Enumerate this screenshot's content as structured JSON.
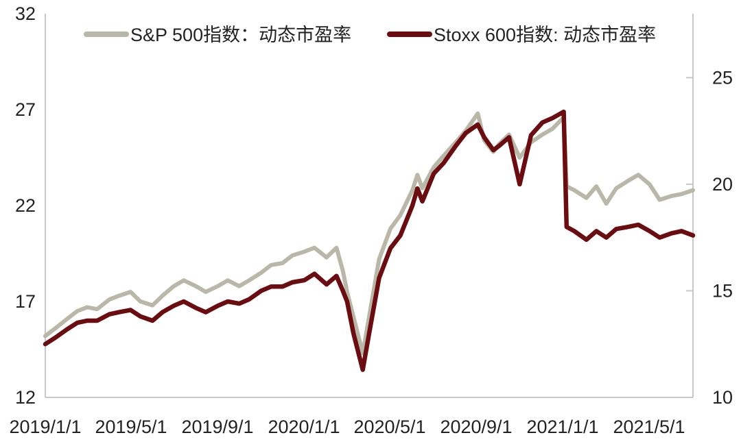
{
  "chart_data": {
    "type": "line",
    "title": "",
    "xlabel": "",
    "ylabel": "",
    "x_ticks": [
      "2019/1/1",
      "2019/5/1",
      "2019/9/1",
      "2020/1/1",
      "2020/5/1",
      "2020/9/1",
      "2021/1/1",
      "2021/5/1"
    ],
    "left_axis": {
      "ylim": [
        12,
        32
      ],
      "ticks": [
        "12",
        "17",
        "22",
        "27",
        "32"
      ]
    },
    "right_axis": {
      "ylim": [
        10,
        28
      ],
      "ticks": [
        "10",
        "15",
        "20",
        "25"
      ]
    },
    "grid": false,
    "legend": "top",
    "series": [
      {
        "name": "S&P 500指数：动态市盈率",
        "axis": "left",
        "color": "#b9b8a8",
        "points": [
          [
            "2019-01-01",
            15.2
          ],
          [
            "2019-01-15",
            15.6
          ],
          [
            "2019-02-01",
            16.1
          ],
          [
            "2019-02-15",
            16.5
          ],
          [
            "2019-03-01",
            16.7
          ],
          [
            "2019-03-15",
            16.6
          ],
          [
            "2019-04-01",
            17.1
          ],
          [
            "2019-04-15",
            17.3
          ],
          [
            "2019-05-01",
            17.5
          ],
          [
            "2019-05-15",
            17.0
          ],
          [
            "2019-06-01",
            16.8
          ],
          [
            "2019-06-15",
            17.3
          ],
          [
            "2019-07-01",
            17.8
          ],
          [
            "2019-07-15",
            18.1
          ],
          [
            "2019-08-01",
            17.8
          ],
          [
            "2019-08-15",
            17.5
          ],
          [
            "2019-09-01",
            17.8
          ],
          [
            "2019-09-15",
            18.1
          ],
          [
            "2019-10-01",
            17.8
          ],
          [
            "2019-10-15",
            18.1
          ],
          [
            "2019-11-01",
            18.5
          ],
          [
            "2019-11-15",
            18.9
          ],
          [
            "2019-12-01",
            19.0
          ],
          [
            "2019-12-15",
            19.4
          ],
          [
            "2020-01-01",
            19.6
          ],
          [
            "2020-01-15",
            19.8
          ],
          [
            "2020-02-01",
            19.3
          ],
          [
            "2020-02-15",
            19.8
          ],
          [
            "2020-02-24",
            18.6
          ],
          [
            "2020-03-01",
            17.5
          ],
          [
            "2020-03-10",
            16.2
          ],
          [
            "2020-03-23",
            14.3
          ],
          [
            "2020-04-01",
            16.2
          ],
          [
            "2020-04-15",
            19.2
          ],
          [
            "2020-05-01",
            20.8
          ],
          [
            "2020-05-15",
            21.5
          ],
          [
            "2020-06-01",
            22.8
          ],
          [
            "2020-06-08",
            23.6
          ],
          [
            "2020-06-15",
            22.9
          ],
          [
            "2020-07-01",
            24.0
          ],
          [
            "2020-07-15",
            24.6
          ],
          [
            "2020-08-01",
            25.3
          ],
          [
            "2020-08-15",
            25.9
          ],
          [
            "2020-09-01",
            26.8
          ],
          [
            "2020-09-10",
            25.4
          ],
          [
            "2020-09-23",
            24.8
          ],
          [
            "2020-10-01",
            25.2
          ],
          [
            "2020-10-15",
            25.7
          ],
          [
            "2020-10-30",
            24.5
          ],
          [
            "2020-11-15",
            25.3
          ],
          [
            "2020-12-01",
            25.7
          ],
          [
            "2020-12-15",
            26.0
          ],
          [
            "2020-12-31",
            26.6
          ],
          [
            "2021-01-04",
            23.0
          ],
          [
            "2021-01-15",
            22.8
          ],
          [
            "2021-02-01",
            22.4
          ],
          [
            "2021-02-15",
            23.0
          ],
          [
            "2021-03-01",
            22.1
          ],
          [
            "2021-03-15",
            22.9
          ],
          [
            "2021-04-01",
            23.3
          ],
          [
            "2021-04-15",
            23.6
          ],
          [
            "2021-05-01",
            23.1
          ],
          [
            "2021-05-15",
            22.3
          ],
          [
            "2021-06-01",
            22.5
          ],
          [
            "2021-06-15",
            22.6
          ],
          [
            "2021-07-01",
            22.8
          ]
        ]
      },
      {
        "name": "Stoxx 600指数: 动态市盈率",
        "axis": "right",
        "color": "#6b0d10",
        "points": [
          [
            "2019-01-01",
            12.5
          ],
          [
            "2019-01-15",
            12.8
          ],
          [
            "2019-02-01",
            13.2
          ],
          [
            "2019-02-15",
            13.5
          ],
          [
            "2019-03-01",
            13.6
          ],
          [
            "2019-03-15",
            13.6
          ],
          [
            "2019-04-01",
            13.9
          ],
          [
            "2019-04-15",
            14.0
          ],
          [
            "2019-05-01",
            14.1
          ],
          [
            "2019-05-15",
            13.8
          ],
          [
            "2019-06-01",
            13.6
          ],
          [
            "2019-06-15",
            14.0
          ],
          [
            "2019-07-01",
            14.3
          ],
          [
            "2019-07-15",
            14.5
          ],
          [
            "2019-08-01",
            14.2
          ],
          [
            "2019-08-15",
            14.0
          ],
          [
            "2019-09-01",
            14.3
          ],
          [
            "2019-09-15",
            14.5
          ],
          [
            "2019-10-01",
            14.4
          ],
          [
            "2019-10-15",
            14.6
          ],
          [
            "2019-11-01",
            15.0
          ],
          [
            "2019-11-15",
            15.2
          ],
          [
            "2019-12-01",
            15.2
          ],
          [
            "2019-12-15",
            15.4
          ],
          [
            "2020-01-01",
            15.5
          ],
          [
            "2020-01-15",
            15.8
          ],
          [
            "2020-02-01",
            15.3
          ],
          [
            "2020-02-15",
            15.7
          ],
          [
            "2020-02-24",
            15.0
          ],
          [
            "2020-03-01",
            14.5
          ],
          [
            "2020-03-10",
            13.0
          ],
          [
            "2020-03-23",
            11.3
          ],
          [
            "2020-04-01",
            13.0
          ],
          [
            "2020-04-15",
            15.6
          ],
          [
            "2020-05-01",
            17.0
          ],
          [
            "2020-05-15",
            17.6
          ],
          [
            "2020-06-01",
            19.0
          ],
          [
            "2020-06-08",
            19.8
          ],
          [
            "2020-06-15",
            19.2
          ],
          [
            "2020-07-01",
            20.5
          ],
          [
            "2020-07-15",
            21.0
          ],
          [
            "2020-08-01",
            21.8
          ],
          [
            "2020-08-15",
            22.4
          ],
          [
            "2020-09-01",
            22.8
          ],
          [
            "2020-09-10",
            22.2
          ],
          [
            "2020-09-23",
            21.6
          ],
          [
            "2020-10-01",
            21.8
          ],
          [
            "2020-10-15",
            22.2
          ],
          [
            "2020-10-30",
            20.0
          ],
          [
            "2020-11-15",
            22.3
          ],
          [
            "2020-12-01",
            22.9
          ],
          [
            "2020-12-15",
            23.1
          ],
          [
            "2020-12-31",
            23.4
          ],
          [
            "2021-01-04",
            18.0
          ],
          [
            "2021-01-15",
            17.8
          ],
          [
            "2021-02-01",
            17.4
          ],
          [
            "2021-02-15",
            17.8
          ],
          [
            "2021-03-01",
            17.5
          ],
          [
            "2021-03-15",
            17.9
          ],
          [
            "2021-04-01",
            18.0
          ],
          [
            "2021-04-15",
            18.1
          ],
          [
            "2021-05-01",
            17.8
          ],
          [
            "2021-05-15",
            17.5
          ],
          [
            "2021-06-01",
            17.7
          ],
          [
            "2021-06-15",
            17.8
          ],
          [
            "2021-07-01",
            17.6
          ]
        ]
      }
    ]
  }
}
